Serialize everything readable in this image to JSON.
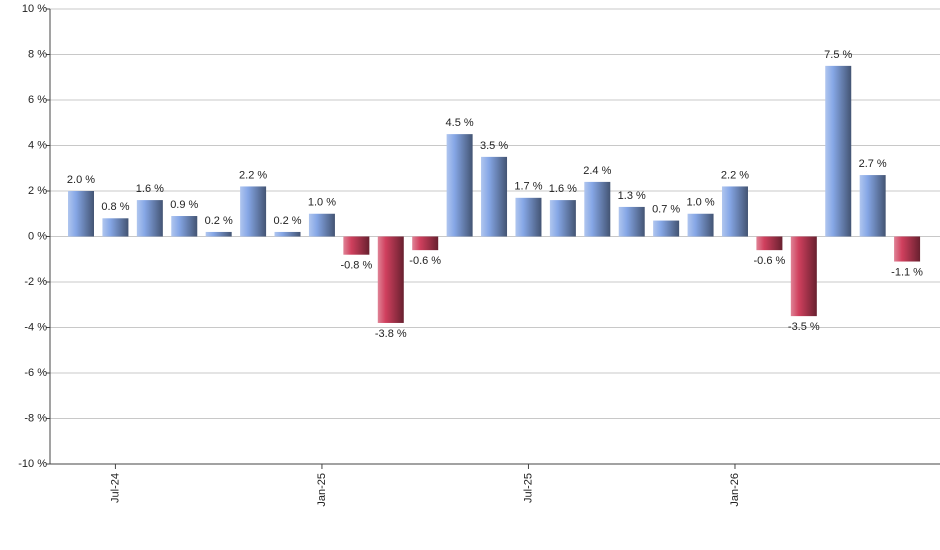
{
  "chart_data": {
    "type": "bar",
    "categories": [
      null,
      "Jul-24",
      null,
      null,
      null,
      null,
      null,
      "Jan-25",
      null,
      null,
      null,
      null,
      null,
      "Jul-25",
      null,
      null,
      null,
      null,
      null,
      "Jan-26",
      null,
      null,
      null,
      null,
      null
    ],
    "values": [
      2.0,
      0.8,
      1.6,
      0.9,
      0.2,
      2.2,
      0.2,
      1.0,
      -0.8,
      -3.8,
      -0.6,
      4.5,
      3.5,
      1.7,
      1.6,
      2.4,
      1.3,
      0.7,
      1.0,
      2.2,
      -0.6,
      -3.5,
      7.5,
      2.7,
      -1.1
    ],
    "value_labels": [
      "2.0 %",
      "0.8 %",
      "1.6 %",
      "0.9 %",
      "0.2 %",
      "2.2 %",
      "0.2 %",
      "1.0 %",
      "-0.8 %",
      "-3.8 %",
      "-0.6 %",
      "4.5 %",
      "3.5 %",
      "1.7 %",
      "1.6 %",
      "2.4 %",
      "1.3 %",
      "0.7 %",
      "1.0 %",
      "2.2 %",
      "-0.6 %",
      "-3.5 %",
      "7.5 %",
      "2.7 %",
      "-1.1 %"
    ],
    "color": "#86a7e6",
    "negative_color": "#d0405e",
    "ylim": [
      -10,
      10
    ],
    "yticks": [
      {
        "value": -10,
        "label": "-10 %"
      },
      {
        "value": -8,
        "label": "-8 %"
      },
      {
        "value": -6,
        "label": "-6 %"
      },
      {
        "value": -4,
        "label": "-4 %"
      },
      {
        "value": -2,
        "label": "-2 %"
      },
      {
        "value": 0,
        "label": "0 %"
      },
      {
        "value": 2,
        "label": "2 %"
      },
      {
        "value": 4,
        "label": "4 %"
      },
      {
        "value": 6,
        "label": "6 %"
      },
      {
        "value": 8,
        "label": "8 %"
      },
      {
        "value": 10,
        "label": "10 %"
      }
    ],
    "grid": true
  }
}
